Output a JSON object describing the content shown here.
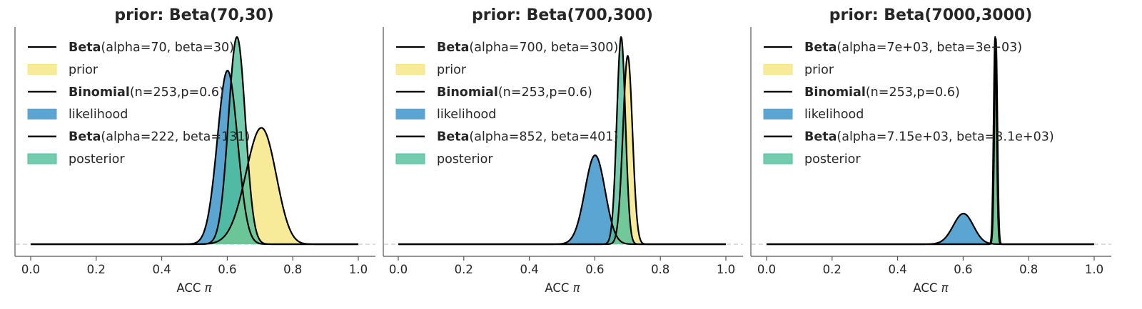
{
  "figure": {
    "xlabel": "ACC",
    "xlabel_symbol": "π"
  },
  "colors": {
    "prior": "#f5e680",
    "likelihood": "#5aa5d1",
    "posterior": "#4fbf98",
    "line": "#000000",
    "axis": "#555555",
    "baseline": "#c8c8c8"
  },
  "chart_data": [
    {
      "type": "area",
      "title": "prior: Beta(70,30)",
      "xlabel": "ACC π",
      "xlim": [
        0.0,
        1.0
      ],
      "xticks": [
        "0.0",
        "0.2",
        "0.4",
        "0.6",
        "0.8",
        "1.0"
      ],
      "yticks": [],
      "legend_position": "upper-left",
      "series": [
        {
          "role": "prior",
          "dist": "beta",
          "alpha": 70,
          "beta": 30
        },
        {
          "role": "likelihood",
          "dist": "binomial",
          "n": 253,
          "p": 0.6
        },
        {
          "role": "posterior",
          "dist": "beta",
          "alpha": 222,
          "beta": 131
        }
      ],
      "legend": [
        {
          "kind": "line",
          "bold": "Beta",
          "text": "(alpha=70, beta=30)"
        },
        {
          "kind": "patch",
          "role": "prior",
          "bold": "",
          "text": "prior"
        },
        {
          "kind": "line",
          "bold": "Binomial",
          "text": "(n=253,p=0.6)"
        },
        {
          "kind": "patch",
          "role": "likelihood",
          "bold": "",
          "text": "likelihood"
        },
        {
          "kind": "line",
          "bold": "Beta",
          "text": "(alpha=222, beta=131)"
        },
        {
          "kind": "patch",
          "role": "posterior",
          "bold": "",
          "text": "posterior"
        }
      ]
    },
    {
      "type": "area",
      "title": "prior: Beta(700,300)",
      "xlabel": "ACC π",
      "xlim": [
        0.0,
        1.0
      ],
      "xticks": [
        "0.0",
        "0.2",
        "0.4",
        "0.6",
        "0.8",
        "1.0"
      ],
      "yticks": [],
      "legend_position": "upper-left",
      "series": [
        {
          "role": "prior",
          "dist": "beta",
          "alpha": 700,
          "beta": 300
        },
        {
          "role": "likelihood",
          "dist": "binomial",
          "n": 253,
          "p": 0.6
        },
        {
          "role": "posterior",
          "dist": "beta",
          "alpha": 852,
          "beta": 401
        }
      ],
      "legend": [
        {
          "kind": "line",
          "bold": "Beta",
          "text": "(alpha=700, beta=300)"
        },
        {
          "kind": "patch",
          "role": "prior",
          "bold": "",
          "text": "prior"
        },
        {
          "kind": "line",
          "bold": "Binomial",
          "text": "(n=253,p=0.6)"
        },
        {
          "kind": "patch",
          "role": "likelihood",
          "bold": "",
          "text": "likelihood"
        },
        {
          "kind": "line",
          "bold": "Beta",
          "text": "(alpha=852, beta=401)"
        },
        {
          "kind": "patch",
          "role": "posterior",
          "bold": "",
          "text": "posterior"
        }
      ]
    },
    {
      "type": "area",
      "title": "prior: Beta(7000,3000)",
      "xlabel": "ACC π",
      "xlim": [
        0.0,
        1.0
      ],
      "xticks": [
        "0.0",
        "0.2",
        "0.4",
        "0.6",
        "0.8",
        "1.0"
      ],
      "yticks": [],
      "legend_position": "upper-left",
      "series": [
        {
          "role": "prior",
          "dist": "beta",
          "alpha": 7000,
          "beta": 3000
        },
        {
          "role": "likelihood",
          "dist": "binomial",
          "n": 253,
          "p": 0.6
        },
        {
          "role": "posterior",
          "dist": "beta",
          "alpha": 7150,
          "beta": 3100
        }
      ],
      "legend": [
        {
          "kind": "line",
          "bold": "Beta",
          "text": "(alpha=7e+03, beta=3e+03)"
        },
        {
          "kind": "patch",
          "role": "prior",
          "bold": "",
          "text": "prior"
        },
        {
          "kind": "line",
          "bold": "Binomial",
          "text": "(n=253,p=0.6)"
        },
        {
          "kind": "patch",
          "role": "likelihood",
          "bold": "",
          "text": "likelihood"
        },
        {
          "kind": "line",
          "bold": "Beta",
          "text": "(alpha=7.15e+03, beta=3.1e+03)"
        },
        {
          "kind": "patch",
          "role": "posterior",
          "bold": "",
          "text": "posterior"
        }
      ]
    }
  ]
}
